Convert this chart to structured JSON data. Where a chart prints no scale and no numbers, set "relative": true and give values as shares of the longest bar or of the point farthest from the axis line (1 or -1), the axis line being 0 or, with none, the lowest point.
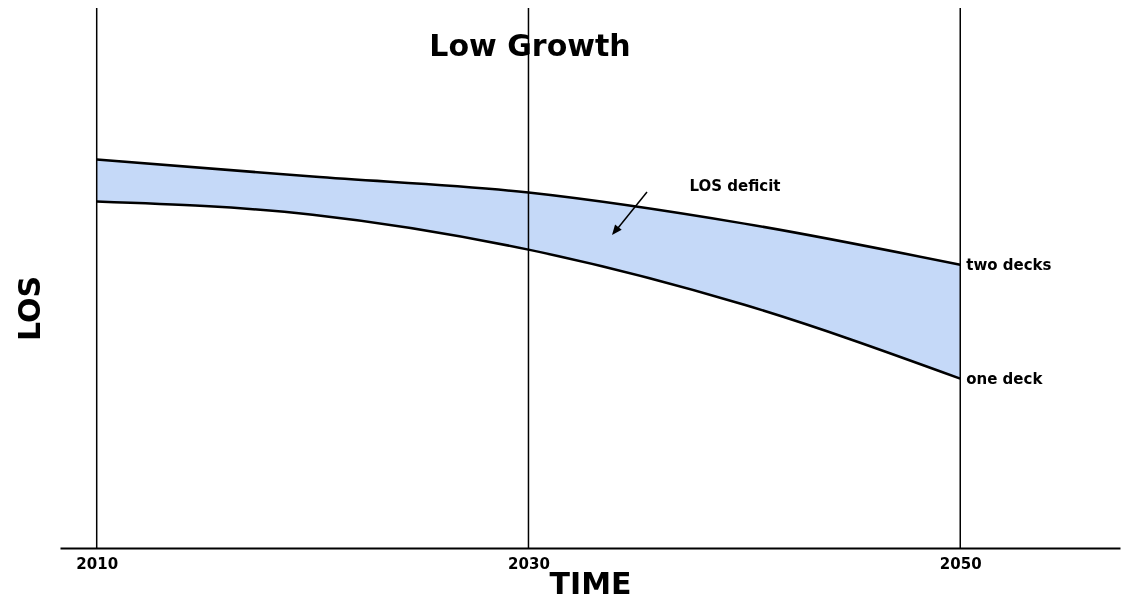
{
  "chart_data": {
    "type": "line",
    "title": "Low Growth",
    "xlabel": "TIME",
    "ylabel": "LOS",
    "relative": true,
    "xlim": [
      2008.3,
      2057.4
    ],
    "xticks": [
      2010,
      2030,
      2050
    ],
    "x": [
      2010,
      2020,
      2030,
      2040,
      2050
    ],
    "grid": false,
    "series": [
      {
        "name": "two decks",
        "color": "#000000",
        "values": [
          1.0,
          0.956,
          0.915,
          0.835,
          0.729
        ],
        "upper": [
          1.0,
          0.956,
          0.915,
          0.835,
          0.729
        ],
        "lower": [
          0.892,
          0.858,
          0.768,
          0.626,
          0.436
        ]
      },
      {
        "name": "one deck",
        "color": "#000000",
        "values": [
          0.892,
          0.858,
          0.768,
          0.626,
          0.436
        ]
      }
    ],
    "ref_lines": [
      {
        "axis": "x",
        "value": 2010,
        "color": "#000000"
      },
      {
        "axis": "x",
        "value": 2030,
        "color": "#000000"
      },
      {
        "axis": "x",
        "value": 2050,
        "color": "#000000"
      }
    ],
    "annotations": [
      "LOS deficit"
    ]
  }
}
